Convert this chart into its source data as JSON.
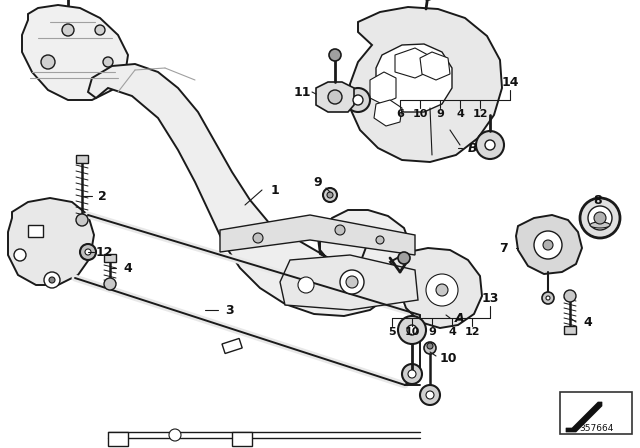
{
  "bg": "#ffffff",
  "image_number": "357664",
  "fig_w": 6.4,
  "fig_h": 4.48,
  "dpi": 100,
  "line_color": "#1a1a1a",
  "gray_light": "#c8c8c8",
  "gray_med": "#a0a0a0",
  "gray_dark": "#787878",
  "label_fs": 9,
  "small_fs": 8
}
